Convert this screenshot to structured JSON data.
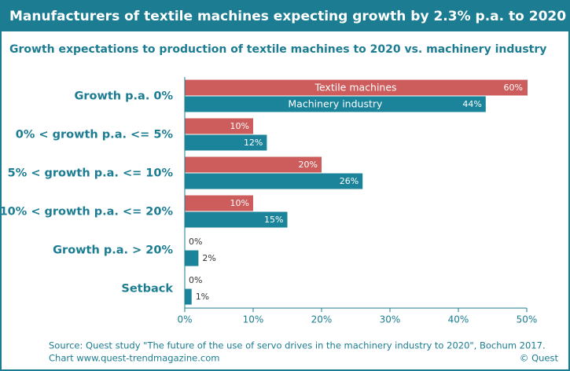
{
  "chart_data": {
    "type": "bar",
    "orientation": "horizontal",
    "title": "Manufacturers of textile machines expecting growth by 2.3% p.a. to 2020",
    "subtitle": "Growth expectations to production of textile machines to 2020 vs. machinery industry",
    "categories": [
      "Growth p.a. 0%",
      "0% < growth p.a. <= 5%",
      "5% < growth p.a. <= 10%",
      "10% < growth p.a. <= 20%",
      "Growth p.a. > 20%",
      "Setback"
    ],
    "series": [
      {
        "name": "Textile machines",
        "color": "#cd5c5c",
        "values": [
          60,
          10,
          20,
          10,
          0,
          0
        ],
        "value_labels": [
          "60%",
          "10%",
          "20%",
          "10%",
          "0%",
          "0%"
        ]
      },
      {
        "name": "Machinery industry",
        "color": "#1b849b",
        "values": [
          44,
          12,
          26,
          15,
          2,
          1
        ],
        "value_labels": [
          "44%",
          "12%",
          "26%",
          "15%",
          "2%",
          "1%"
        ]
      }
    ],
    "xlim": [
      0,
      50
    ],
    "xticks": [
      {
        "value": 0,
        "label": "0%"
      },
      {
        "value": 10,
        "label": "10%"
      },
      {
        "value": 20,
        "label": "20%"
      },
      {
        "value": 30,
        "label": "30%"
      },
      {
        "value": 40,
        "label": "40%"
      },
      {
        "value": 50,
        "label": "50%"
      }
    ],
    "grid": false,
    "source": "Source: Quest study \"The future of the use of servo drives in the machinery industry to 2020\", Bochum 2017.",
    "credit": "Chart www.quest-trendmagazine.com",
    "copyright": "© Quest"
  }
}
